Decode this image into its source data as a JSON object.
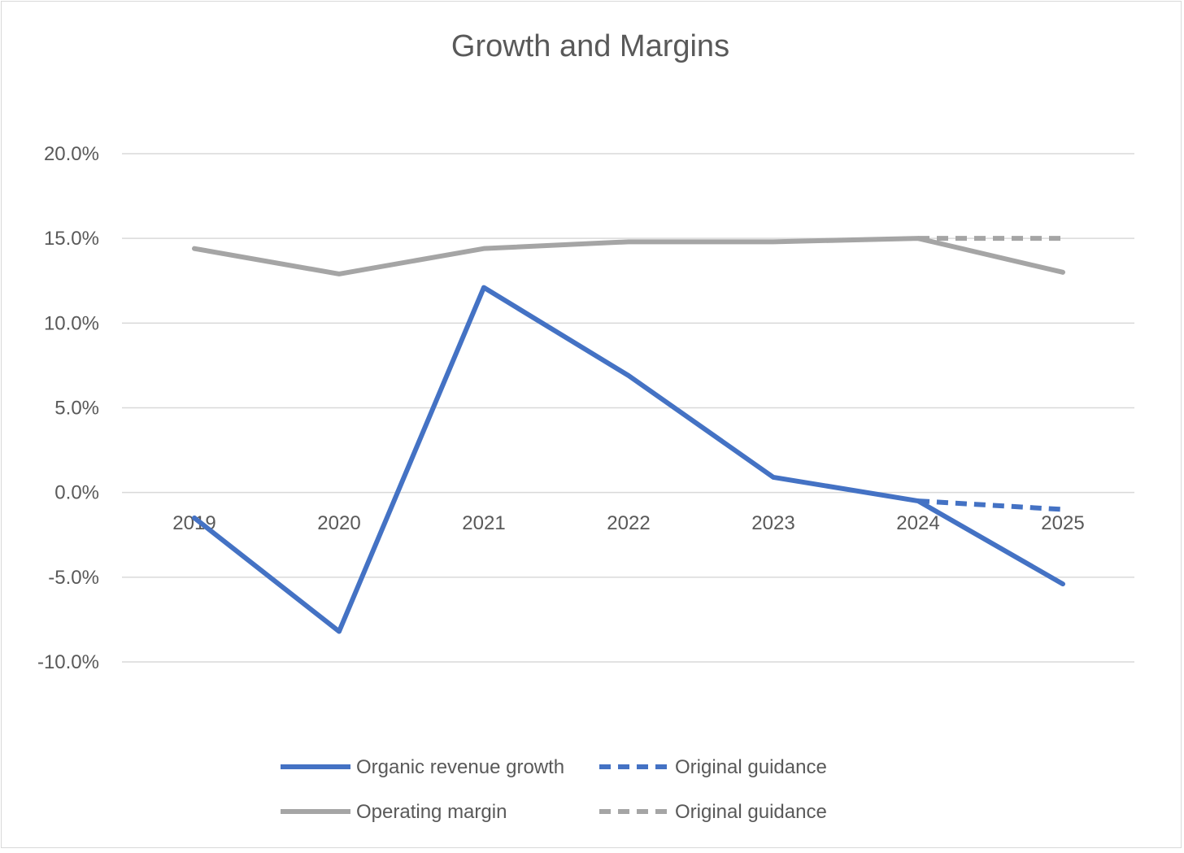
{
  "chart_data": {
    "type": "line",
    "title": "Growth and Margins",
    "xlabel": "",
    "ylabel": "",
    "categories": [
      "2019",
      "2020",
      "2021",
      "2022",
      "2023",
      "2024",
      "2025"
    ],
    "y_tick_labels": [
      "20.0%",
      "15.0%",
      "10.0%",
      "5.0%",
      "0.0%",
      "-5.0%",
      "-10.0%"
    ],
    "ylim": [
      -10,
      20
    ],
    "y_ticks": [
      20,
      15,
      10,
      5,
      0,
      -5,
      -10
    ],
    "grid": true,
    "legend_position": "bottom",
    "series": [
      {
        "name": "Organic revenue growth",
        "color": "#4472C4",
        "style": "solid",
        "x": [
          "2019",
          "2020",
          "2021",
          "2022",
          "2023",
          "2024",
          "2025"
        ],
        "values": [
          -1.5,
          -8.2,
          12.1,
          6.9,
          0.9,
          -0.5,
          -5.4
        ]
      },
      {
        "name": "Original guidance",
        "color": "#4472C4",
        "style": "dashed",
        "x": [
          "2024",
          "2025"
        ],
        "values": [
          -0.5,
          -1.0
        ]
      },
      {
        "name": "Operating margin",
        "color": "#A5A5A5",
        "style": "solid",
        "x": [
          "2019",
          "2020",
          "2021",
          "2022",
          "2023",
          "2024",
          "2025"
        ],
        "values": [
          14.4,
          12.9,
          14.4,
          14.8,
          14.8,
          15.0,
          13.0
        ]
      },
      {
        "name": "Original guidance",
        "color": "#A5A5A5",
        "style": "dashed",
        "x": [
          "2024",
          "2025"
        ],
        "values": [
          15.0,
          15.0
        ]
      }
    ]
  }
}
